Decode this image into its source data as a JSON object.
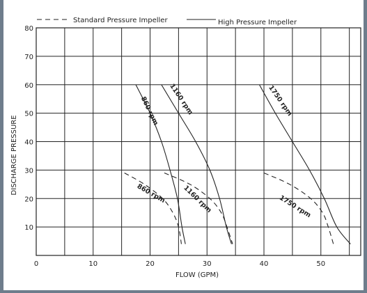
{
  "chart_data": {
    "type": "line",
    "title": "",
    "xlabel": "FLOW (GPM)",
    "ylabel": "DISCHARGE PRESSURE",
    "xlim": [
      0,
      57
    ],
    "ylim": [
      0,
      80
    ],
    "x_ticks": [
      0,
      10,
      20,
      30,
      40,
      50
    ],
    "y_ticks": [
      10,
      20,
      30,
      40,
      50,
      60,
      70,
      80
    ],
    "grid": true,
    "legend": {
      "placement": "top",
      "entries": [
        {
          "label": "Standard Pressure Impeller",
          "style": "dashed"
        },
        {
          "label": "High Pressure Impeller",
          "style": "solid"
        }
      ]
    },
    "series": [
      {
        "label": "860 rpm",
        "impeller": "High Pressure Impeller",
        "style": "solid",
        "points": [
          [
            17.5,
            60
          ],
          [
            20,
            50
          ],
          [
            22,
            40
          ],
          [
            23.5,
            30
          ],
          [
            24.8,
            20
          ],
          [
            25.6,
            10
          ],
          [
            26.2,
            4
          ]
        ]
      },
      {
        "label": "1160 rpm",
        "impeller": "High Pressure Impeller",
        "style": "solid",
        "points": [
          [
            22,
            60
          ],
          [
            25,
            50
          ],
          [
            28,
            40
          ],
          [
            30.5,
            30
          ],
          [
            32.2,
            20
          ],
          [
            33.4,
            10
          ],
          [
            34.3,
            4
          ]
        ]
      },
      {
        "label": "1750 rpm",
        "impeller": "High Pressure Impeller",
        "style": "solid",
        "points": [
          [
            39.2,
            60
          ],
          [
            42,
            50
          ],
          [
            45,
            40
          ],
          [
            48,
            30
          ],
          [
            50.6,
            20
          ],
          [
            52.8,
            10
          ],
          [
            55.2,
            4
          ]
        ]
      },
      {
        "label": "860 rpm",
        "impeller": "Standard Pressure Impeller",
        "style": "dashed",
        "points": [
          [
            15.5,
            29
          ],
          [
            19,
            25
          ],
          [
            22.2,
            20
          ],
          [
            24,
            15
          ],
          [
            25,
            10
          ],
          [
            25.5,
            4
          ]
        ]
      },
      {
        "label": "1160 rpm",
        "impeller": "Standard Pressure Impeller",
        "style": "dashed",
        "points": [
          [
            22.5,
            29
          ],
          [
            27,
            25
          ],
          [
            30.5,
            20
          ],
          [
            32.5,
            15
          ],
          [
            33.5,
            10
          ],
          [
            34.5,
            4
          ]
        ]
      },
      {
        "label": "1750 rpm",
        "impeller": "Standard Pressure Impeller",
        "style": "dashed",
        "points": [
          [
            40,
            29
          ],
          [
            44.5,
            25
          ],
          [
            48.2,
            20
          ],
          [
            50.3,
            15
          ],
          [
            51.3,
            10
          ],
          [
            52.2,
            4
          ]
        ]
      }
    ],
    "annotations": [
      {
        "text": "860 rpm",
        "x": 19.6,
        "y": 50.5,
        "angle": 64
      },
      {
        "text": "1160 rpm",
        "x": 25.2,
        "y": 54.5,
        "angle": 56
      },
      {
        "text": "1750 rpm",
        "x": 42.6,
        "y": 54,
        "angle": 55
      },
      {
        "text": "860 rpm",
        "x": 20,
        "y": 21.2,
        "angle": 30
      },
      {
        "text": "1160 rpm",
        "x": 28.1,
        "y": 19.3,
        "angle": 44
      },
      {
        "text": "1750 rpm",
        "x": 45.3,
        "y": 16.6,
        "angle": 32
      }
    ]
  }
}
